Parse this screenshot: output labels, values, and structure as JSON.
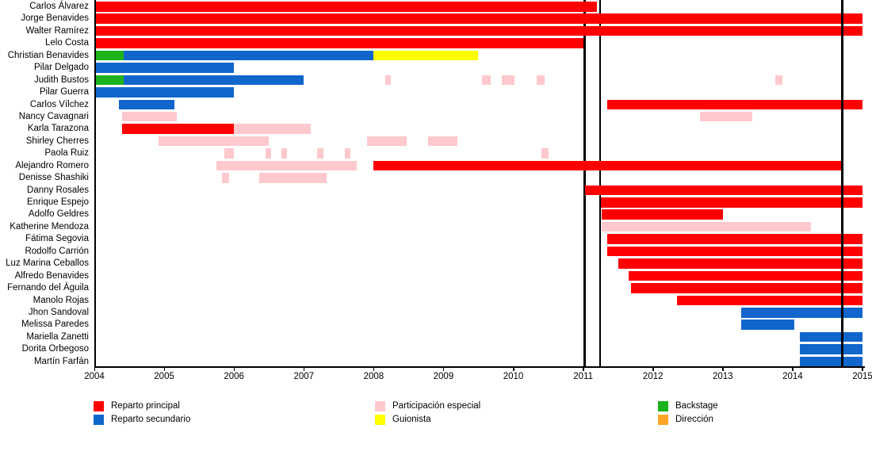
{
  "chart_data": {
    "type": "bar",
    "subtype": "horizontal-timeline-gantt",
    "title": "",
    "xlabel": "",
    "ylabel": "",
    "axis": {
      "x_min": 2004,
      "x_max": 2015,
      "ticks": [
        2004,
        2005,
        2006,
        2007,
        2008,
        2009,
        2010,
        2011,
        2012,
        2013,
        2014,
        2015
      ],
      "grid": false
    },
    "colors": {
      "principal": "#FF0000",
      "secundario": "#1166CB",
      "especial": "#FFC9CD",
      "guionista": "#FFFF00",
      "backstage": "#1CB21C",
      "direccion": "#FDA529",
      "axis": "#000000",
      "marker": "#000000"
    },
    "legend": [
      {
        "label": "Reparto principal",
        "type": "principal",
        "col": 0,
        "row": 0
      },
      {
        "label": "Reparto secundario",
        "type": "secundario",
        "col": 0,
        "row": 1
      },
      {
        "label": "Participación especial",
        "type": "especial",
        "col": 1,
        "row": 0
      },
      {
        "label": "Guionista",
        "type": "guionista",
        "col": 1,
        "row": 1
      },
      {
        "label": "Backstage",
        "type": "backstage",
        "col": 2,
        "row": 0
      },
      {
        "label": "Dirección",
        "type": "direccion",
        "col": 2,
        "row": 1
      }
    ],
    "markers": [
      {
        "year": 2011.02,
        "layer": "back"
      },
      {
        "year": 2011.24,
        "layer": "back"
      },
      {
        "year": 2014.71,
        "layer": "front"
      }
    ],
    "rows": [
      {
        "name": "Carlos Álvarez",
        "segments": [
          {
            "from": 2004.0,
            "to": 2011.2,
            "type": "principal"
          }
        ]
      },
      {
        "name": "Jorge Benavides",
        "segments": [
          {
            "from": 2004.0,
            "to": 2015.0,
            "type": "principal"
          }
        ]
      },
      {
        "name": "Walter Ramírez",
        "segments": [
          {
            "from": 2004.0,
            "to": 2015.0,
            "type": "principal"
          }
        ]
      },
      {
        "name": "Lelo Costa",
        "segments": [
          {
            "from": 2004.0,
            "to": 2011.0,
            "type": "principal"
          }
        ]
      },
      {
        "name": "Christian Benavides",
        "segments": [
          {
            "from": 2004.0,
            "to": 2004.42,
            "type": "backstage"
          },
          {
            "from": 2004.42,
            "to": 2008.0,
            "type": "secundario"
          },
          {
            "from": 2008.0,
            "to": 2009.5,
            "type": "guionista"
          }
        ]
      },
      {
        "name": "Pilar Delgado",
        "segments": [
          {
            "from": 2004.0,
            "to": 2006.0,
            "type": "secundario"
          }
        ]
      },
      {
        "name": "Judith Bustos",
        "segments": [
          {
            "from": 2004.0,
            "to": 2004.42,
            "type": "backstage"
          },
          {
            "from": 2004.42,
            "to": 2007.0,
            "type": "secundario"
          },
          {
            "from": 2008.17,
            "to": 2008.25,
            "type": "especial"
          },
          {
            "from": 2009.55,
            "to": 2009.68,
            "type": "especial"
          },
          {
            "from": 2009.83,
            "to": 2010.02,
            "type": "especial"
          },
          {
            "from": 2010.33,
            "to": 2010.45,
            "type": "especial"
          },
          {
            "from": 2013.75,
            "to": 2013.85,
            "type": "especial"
          }
        ]
      },
      {
        "name": "Pilar Guerra",
        "segments": [
          {
            "from": 2004.0,
            "to": 2006.0,
            "type": "secundario"
          }
        ]
      },
      {
        "name": "Carlos Vílchez",
        "segments": [
          {
            "from": 2004.35,
            "to": 2005.15,
            "type": "secundario"
          },
          {
            "from": 2011.35,
            "to": 2015.0,
            "type": "principal"
          }
        ]
      },
      {
        "name": "Nancy Cavagnari",
        "segments": [
          {
            "from": 2004.4,
            "to": 2005.18,
            "type": "especial"
          },
          {
            "from": 2012.67,
            "to": 2013.42,
            "type": "especial"
          }
        ]
      },
      {
        "name": "Karla Tarazona",
        "segments": [
          {
            "from": 2004.4,
            "to": 2006.0,
            "type": "principal"
          },
          {
            "from": 2006.0,
            "to": 2007.1,
            "type": "especial"
          }
        ]
      },
      {
        "name": "Shirley Cherres",
        "segments": [
          {
            "from": 2004.92,
            "to": 2006.5,
            "type": "especial"
          },
          {
            "from": 2007.9,
            "to": 2008.47,
            "type": "especial"
          },
          {
            "from": 2008.78,
            "to": 2009.2,
            "type": "especial"
          }
        ]
      },
      {
        "name": "Paola Ruiz",
        "segments": [
          {
            "from": 2005.86,
            "to": 2006.0,
            "type": "especial"
          },
          {
            "from": 2006.45,
            "to": 2006.53,
            "type": "especial"
          },
          {
            "from": 2006.68,
            "to": 2006.76,
            "type": "especial"
          },
          {
            "from": 2007.19,
            "to": 2007.28,
            "type": "especial"
          },
          {
            "from": 2007.59,
            "to": 2007.67,
            "type": "especial"
          },
          {
            "from": 2010.4,
            "to": 2010.5,
            "type": "especial"
          }
        ]
      },
      {
        "name": "Alejandro Romero",
        "segments": [
          {
            "from": 2005.75,
            "to": 2007.76,
            "type": "especial"
          },
          {
            "from": 2008.0,
            "to": 2014.72,
            "type": "principal"
          }
        ]
      },
      {
        "name": "Denisse Shashiki",
        "segments": [
          {
            "from": 2005.83,
            "to": 2005.93,
            "type": "especial"
          },
          {
            "from": 2006.36,
            "to": 2007.33,
            "type": "especial"
          }
        ]
      },
      {
        "name": "Danny Rosales",
        "segments": [
          {
            "from": 2011.03,
            "to": 2015.0,
            "type": "principal"
          }
        ]
      },
      {
        "name": "Enrique Espejo",
        "segments": [
          {
            "from": 2011.25,
            "to": 2015.0,
            "type": "principal"
          }
        ]
      },
      {
        "name": "Adolfo Geldres",
        "segments": [
          {
            "from": 2011.27,
            "to": 2013.0,
            "type": "principal"
          }
        ]
      },
      {
        "name": "Katherine Mendoza",
        "segments": [
          {
            "from": 2011.27,
            "to": 2014.26,
            "type": "especial"
          }
        ]
      },
      {
        "name": "Fátima Segovia",
        "segments": [
          {
            "from": 2011.35,
            "to": 2015.0,
            "type": "principal"
          }
        ]
      },
      {
        "name": "Rodolfo Carrión",
        "segments": [
          {
            "from": 2011.35,
            "to": 2015.0,
            "type": "principal"
          }
        ]
      },
      {
        "name": "Luz Marina Ceballos",
        "segments": [
          {
            "from": 2011.5,
            "to": 2015.0,
            "type": "principal"
          }
        ]
      },
      {
        "name": "Alfredo Benavides",
        "segments": [
          {
            "from": 2011.65,
            "to": 2015.0,
            "type": "principal"
          }
        ]
      },
      {
        "name": "Fernando del Águila",
        "segments": [
          {
            "from": 2011.68,
            "to": 2015.0,
            "type": "principal"
          }
        ]
      },
      {
        "name": "Manolo Rojas",
        "segments": [
          {
            "from": 2012.34,
            "to": 2015.0,
            "type": "principal"
          }
        ]
      },
      {
        "name": "Jhon Sandoval",
        "segments": [
          {
            "from": 2013.26,
            "to": 2015.0,
            "type": "secundario"
          }
        ]
      },
      {
        "name": "Melissa Paredes",
        "segments": [
          {
            "from": 2013.26,
            "to": 2014.02,
            "type": "secundario"
          }
        ]
      },
      {
        "name": "Mariella Zanetti",
        "segments": [
          {
            "from": 2014.1,
            "to": 2015.0,
            "type": "secundario"
          }
        ]
      },
      {
        "name": "Dorita Orbegoso",
        "segments": [
          {
            "from": 2014.1,
            "to": 2015.0,
            "type": "secundario"
          }
        ]
      },
      {
        "name": "Martín Farfán",
        "segments": [
          {
            "from": 2014.1,
            "to": 2015.0,
            "type": "secundario"
          }
        ]
      }
    ]
  }
}
